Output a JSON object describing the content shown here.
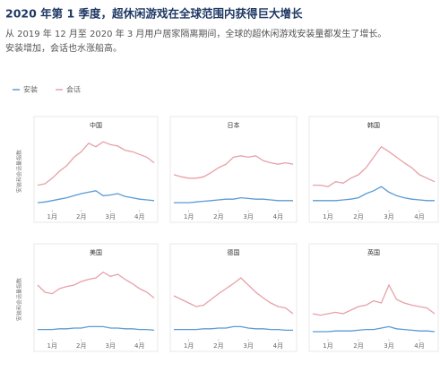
{
  "header": {
    "title": "2020 年第 1 季度，超休闲游戏在全球范围内获得巨大增长",
    "subtitle": [
      "从 2019 年 12 月至 2020 年 3 月用户居家隔离期间，全球的超休闲游戏安装量都发生了增长。",
      "安装增加，会话也水涨船高。"
    ]
  },
  "chart_data": [
    {
      "type": "line",
      "title": "中国",
      "ylabel": "安装和会话量指数",
      "ylim": [
        0,
        100
      ],
      "categories": [
        null,
        null,
        "1月",
        null,
        null,
        null,
        "2月",
        null,
        null,
        null,
        "3月",
        null,
        null,
        null,
        "4月",
        null,
        null
      ],
      "series": [
        {
          "name": "安装",
          "color": "#5b9bd5",
          "values": [
            5,
            6,
            8,
            10,
            12,
            15,
            18,
            20,
            22,
            15,
            16,
            18,
            14,
            12,
            10,
            9,
            8
          ]
        },
        {
          "name": "会话",
          "color": "#e6a1a8",
          "values": [
            30,
            32,
            40,
            50,
            58,
            70,
            78,
            90,
            85,
            92,
            88,
            86,
            80,
            78,
            74,
            70,
            62
          ]
        }
      ]
    },
    {
      "type": "line",
      "title": "日本",
      "ylim": [
        0,
        100
      ],
      "categories": [
        null,
        null,
        "1月",
        null,
        null,
        null,
        "2月",
        null,
        null,
        null,
        "3月",
        null,
        null,
        null,
        "4月",
        null,
        null
      ],
      "series": [
        {
          "name": "安装",
          "color": "#5b9bd5",
          "values": [
            5,
            5,
            5,
            6,
            7,
            8,
            9,
            10,
            10,
            12,
            11,
            10,
            10,
            9,
            8,
            8,
            8
          ]
        },
        {
          "name": "会话",
          "color": "#e6a1a8",
          "values": [
            45,
            42,
            40,
            40,
            42,
            48,
            55,
            60,
            70,
            72,
            70,
            72,
            65,
            62,
            60,
            62,
            60
          ]
        }
      ]
    },
    {
      "type": "line",
      "title": "韩国",
      "ylim": [
        0,
        100
      ],
      "categories": [
        null,
        null,
        "1月",
        null,
        null,
        null,
        "2月",
        null,
        null,
        null,
        "3月",
        null,
        null,
        null,
        "4月",
        null,
        null
      ],
      "series": [
        {
          "name": "安装",
          "color": "#5b9bd5",
          "values": [
            8,
            8,
            8,
            8,
            9,
            10,
            12,
            18,
            22,
            28,
            20,
            15,
            12,
            10,
            9,
            8,
            8
          ]
        },
        {
          "name": "会话",
          "color": "#e6a1a8",
          "values": [
            30,
            30,
            28,
            35,
            33,
            40,
            45,
            55,
            70,
            85,
            78,
            70,
            62,
            55,
            45,
            40,
            35
          ]
        }
      ]
    },
    {
      "type": "line",
      "title": "美国",
      "ylabel": "安装和会话量指数",
      "ylim": [
        0,
        100
      ],
      "categories": [
        null,
        null,
        "1月",
        null,
        null,
        null,
        "2月",
        null,
        null,
        null,
        "3月",
        null,
        null,
        null,
        "4月",
        null,
        null
      ],
      "series": [
        {
          "name": "安装",
          "color": "#5b9bd5",
          "values": [
            8,
            8,
            8,
            9,
            9,
            10,
            10,
            12,
            12,
            12,
            10,
            10,
            9,
            9,
            8,
            8,
            7
          ]
        },
        {
          "name": "会话",
          "color": "#e6a1a8",
          "values": [
            70,
            60,
            58,
            65,
            68,
            70,
            75,
            78,
            80,
            88,
            82,
            85,
            78,
            72,
            65,
            60,
            52
          ]
        }
      ]
    },
    {
      "type": "line",
      "title": "德国",
      "ylim": [
        0,
        100
      ],
      "categories": [
        null,
        null,
        "1月",
        null,
        null,
        null,
        "2月",
        null,
        null,
        null,
        "3月",
        null,
        null,
        null,
        "4月",
        null,
        null
      ],
      "series": [
        {
          "name": "安装",
          "color": "#5b9bd5",
          "values": [
            8,
            8,
            8,
            8,
            9,
            9,
            10,
            10,
            12,
            12,
            10,
            9,
            9,
            8,
            8,
            7,
            7
          ]
        },
        {
          "name": "会话",
          "color": "#e6a1a8",
          "values": [
            55,
            50,
            45,
            40,
            42,
            50,
            58,
            65,
            72,
            80,
            70,
            60,
            52,
            45,
            40,
            38,
            30
          ]
        }
      ]
    },
    {
      "type": "line",
      "title": "英国",
      "ylim": [
        0,
        100
      ],
      "categories": [
        null,
        null,
        "1月",
        null,
        null,
        null,
        "2月",
        null,
        null,
        null,
        "3月",
        null,
        null,
        null,
        "4月",
        null,
        null
      ],
      "series": [
        {
          "name": "安装",
          "color": "#5b9bd5",
          "values": [
            5,
            5,
            5,
            6,
            6,
            6,
            7,
            8,
            8,
            10,
            12,
            9,
            8,
            7,
            6,
            6,
            5
          ]
        },
        {
          "name": "会话",
          "color": "#e6a1a8",
          "values": [
            30,
            28,
            30,
            32,
            30,
            35,
            40,
            42,
            48,
            45,
            70,
            50,
            45,
            42,
            40,
            38,
            30
          ]
        }
      ]
    }
  ]
}
